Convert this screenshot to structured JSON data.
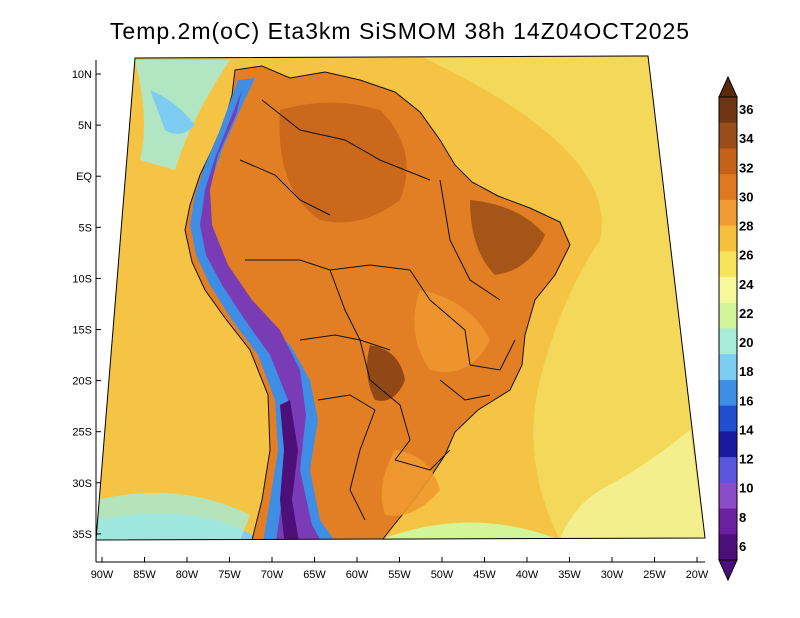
{
  "title": "Temp.2m(oC) Eta3km SiSMOM 38h 14Z04OCT2025",
  "map": {
    "region": "South America",
    "lat_labels": [
      "10N",
      "5N",
      "EQ",
      "5S",
      "10S",
      "15S",
      "20S",
      "25S",
      "30S",
      "35S"
    ],
    "lon_labels": [
      "90W",
      "85W",
      "80W",
      "75W",
      "70W",
      "65W",
      "60W",
      "55W",
      "50W",
      "45W",
      "40W",
      "35W",
      "30W",
      "25W",
      "20W"
    ]
  },
  "colorbar": {
    "labels": [
      "36",
      "34",
      "32",
      "30",
      "28",
      "26",
      "24",
      "22",
      "20",
      "18",
      "16",
      "14",
      "12",
      "10",
      "8",
      "6"
    ],
    "colors": [
      "#6e3612",
      "#994d1a",
      "#c46219",
      "#e0781f",
      "#f09a31",
      "#f5c13c",
      "#f8e45a",
      "#f5f99b",
      "#d3f59a",
      "#a6ecd8",
      "#7dcdf3",
      "#3f8ee6",
      "#1f4fcf",
      "#1a1a9e",
      "#5a55dd",
      "#8b4ac7",
      "#6b1fa1",
      "#4d0f7a"
    ],
    "top_color": "#5b2a0b",
    "bottom_color": "#4d0f7a"
  },
  "palette": {
    "ocean_warm": "#f6c444",
    "ocean_cool": "#f4de66",
    "land_hot": "#e27f24",
    "land_very_hot": "#c8641b",
    "andes_cold": "#7a3cb6"
  }
}
